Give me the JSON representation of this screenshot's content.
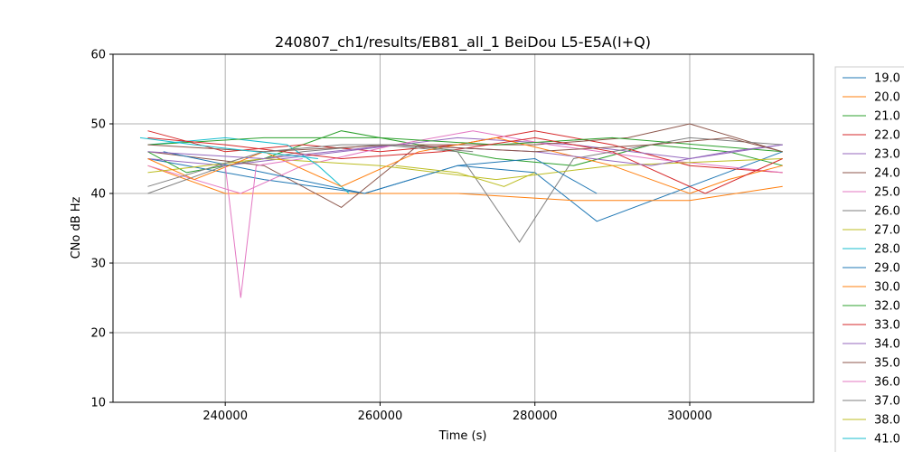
{
  "chart_data": {
    "type": "line",
    "title": "240807_ch1/results/EB81_all_1 BeiDou L5-E5A(I+Q)",
    "xlabel": "Time (s)",
    "ylabel": "CNo dB Hz",
    "xlim": [
      225500,
      316000
    ],
    "ylim": [
      10,
      60
    ],
    "xticks": [
      240000,
      260000,
      280000,
      300000
    ],
    "xtick_labels": [
      "240000",
      "260000",
      "280000",
      "300000"
    ],
    "yticks": [
      10,
      20,
      30,
      40,
      50,
      60
    ],
    "ytick_labels": [
      "10",
      "20",
      "30",
      "40",
      "50",
      "60"
    ],
    "grid": true,
    "legend_position": "right",
    "series": [
      {
        "name": "19.0",
        "color": "#1f77b4",
        "x": [
          230000,
          245000,
          258000,
          270000,
          280000,
          288000,
          300000,
          312000
        ],
        "y": [
          45,
          42,
          40,
          44,
          43,
          36,
          41,
          46
        ]
      },
      {
        "name": "20.0",
        "color": "#ff7f0e",
        "x": [
          230000,
          240000,
          255000,
          270000,
          285000,
          300000,
          312000
        ],
        "y": [
          44,
          40,
          40,
          40,
          39,
          39,
          41
        ]
      },
      {
        "name": "21.0",
        "color": "#2ca02c",
        "x": [
          230000,
          235000,
          245000,
          255000,
          265000,
          275000,
          285000,
          295000,
          305000,
          312000
        ],
        "y": [
          46,
          43,
          45,
          49,
          47,
          45,
          44,
          47,
          46,
          44
        ]
      },
      {
        "name": "22.0",
        "color": "#d62728",
        "x": [
          230000,
          240000,
          250000,
          260000,
          270000,
          280000,
          290000,
          300000,
          312000
        ],
        "y": [
          49,
          46,
          47,
          46,
          47,
          49,
          47,
          44,
          43
        ]
      },
      {
        "name": "23.0",
        "color": "#9467bd",
        "x": [
          230000,
          240000,
          255000,
          270000,
          285000,
          300000,
          312000
        ],
        "y": [
          45,
          44,
          46,
          48,
          47,
          45,
          47
        ]
      },
      {
        "name": "24.0",
        "color": "#8c564b",
        "x": [
          230000,
          245000,
          255000,
          265000,
          280000,
          292000,
          300000,
          312000
        ],
        "y": [
          46,
          44,
          38,
          47,
          47,
          48,
          50,
          46
        ]
      },
      {
        "name": "25.0",
        "color": "#e377c2",
        "x": [
          230000,
          242000,
          250000,
          262000,
          272000,
          282000,
          295000,
          312000
        ],
        "y": [
          44,
          40,
          44,
          47,
          49,
          47,
          45,
          43
        ]
      },
      {
        "name": "26.0",
        "color": "#7f7f7f",
        "x": [
          230000,
          240000,
          250000,
          260000,
          270000,
          278000,
          285000,
          300000,
          312000
        ],
        "y": [
          40,
          44,
          46,
          47,
          46,
          33,
          45,
          48,
          47
        ]
      },
      {
        "name": "27.0",
        "color": "#bcbd22",
        "x": [
          230000,
          245000,
          260000,
          275000,
          290000,
          312000
        ],
        "y": [
          43,
          45,
          44,
          42,
          44,
          45
        ]
      },
      {
        "name": "28.0",
        "color": "#17becf",
        "x": [
          230000,
          240000,
          248000,
          252000,
          256000
        ],
        "y": [
          47,
          48,
          47,
          44,
          40
        ]
      },
      {
        "name": "29.0",
        "color": "#1f77b4",
        "x": [
          232000,
          245000,
          258000,
          270000,
          280000,
          288000
        ],
        "y": [
          46,
          43,
          40,
          44,
          45,
          40
        ]
      },
      {
        "name": "30.0",
        "color": "#ff7f0e",
        "x": [
          230000,
          236000,
          245000,
          255000,
          265000,
          275000,
          290000,
          300000,
          305000,
          312000
        ],
        "y": [
          45,
          42,
          46,
          41,
          46,
          48,
          44,
          40,
          42,
          44
        ]
      },
      {
        "name": "32.0",
        "color": "#2ca02c",
        "x": [
          230000,
          245000,
          260000,
          275000,
          290000,
          312000
        ],
        "y": [
          47,
          48,
          48,
          47,
          48,
          46
        ]
      },
      {
        "name": "33.0",
        "color": "#d62728",
        "x": [
          230000,
          240000,
          255000,
          268000,
          280000,
          290000,
          302000,
          312000
        ],
        "y": [
          48,
          47,
          45,
          46,
          48,
          46,
          40,
          45
        ]
      },
      {
        "name": "34.0",
        "color": "#9467bd",
        "x": [
          230000,
          245000,
          262000,
          280000,
          295000,
          305000,
          312000
        ],
        "y": [
          46,
          45,
          47,
          46,
          44,
          46,
          47
        ]
      },
      {
        "name": "35.0",
        "color": "#8c564b",
        "x": [
          230000,
          245000,
          262000,
          280000,
          295000,
          305000,
          312000
        ],
        "y": [
          47,
          46,
          47,
          46,
          47,
          48,
          46
        ]
      },
      {
        "name": "36.0",
        "color": "#e377c2",
        "x": [
          240000,
          242000,
          244000,
          250000
        ],
        "y": [
          44,
          25,
          44,
          45
        ]
      },
      {
        "name": "37.0",
        "color": "#7f7f7f",
        "x": [
          230000,
          245000,
          255000,
          262000,
          272000
        ],
        "y": [
          41,
          46,
          47,
          47,
          46
        ]
      },
      {
        "name": "38.0",
        "color": "#bcbd22",
        "x": [
          262000,
          270000,
          276000,
          280000
        ],
        "y": [
          44,
          43,
          41,
          43
        ]
      },
      {
        "name": "41.0",
        "color": "#17becf",
        "x": [
          229000,
          236000,
          244000,
          252000
        ],
        "y": [
          48,
          47,
          46,
          45
        ]
      }
    ]
  }
}
